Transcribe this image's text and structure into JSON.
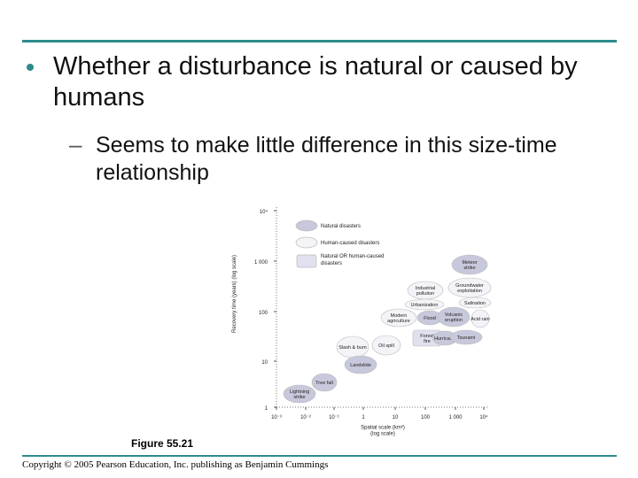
{
  "slide": {
    "bullet": "Whether a disturbance is natural or caused by humans",
    "sub_dash": "–",
    "sub_bullet": "Seems to make little difference in this size-time relationship",
    "figure_caption": "Figure 55.21",
    "copyright": "Copyright © 2005 Pearson Education, Inc. publishing as Benjamin Cummings"
  },
  "colors": {
    "accent": "#2e8b8b",
    "natural_fill": "#c8c8dc",
    "human_fill": "#f4f4f8",
    "mixed_fill": "#e0e0ee"
  },
  "diagram": {
    "y_axis_label": "Recovery time (years) (log scale)",
    "x_axis_label": "Spatial scale (km²) (log scale)",
    "y_ticks": [
      "10⁴",
      "1 000",
      "100",
      "10",
      "1"
    ],
    "x_ticks": [
      "10⁻³",
      "10⁻²",
      "10⁻¹",
      "1",
      "10",
      "100",
      "1 000",
      "10⁴"
    ],
    "legend": [
      {
        "label": "Natural disasters",
        "kind": "natural"
      },
      {
        "label": "Human-caused disasters",
        "kind": "human"
      },
      {
        "label": "Natural OR human-caused disasters",
        "kind": "mixed"
      }
    ],
    "events": [
      {
        "label": "Meteor strike",
        "kind": "natural"
      },
      {
        "label": "Industrial pollution",
        "kind": "human"
      },
      {
        "label": "Groundwater exploitation",
        "kind": "human"
      },
      {
        "label": "Urbanization",
        "kind": "human"
      },
      {
        "label": "Salination",
        "kind": "human"
      },
      {
        "label": "Modern agriculture",
        "kind": "human"
      },
      {
        "label": "Flood",
        "kind": "natural"
      },
      {
        "label": "Volcanic eruption",
        "kind": "natural"
      },
      {
        "label": "Acid rain",
        "kind": "human"
      },
      {
        "label": "Forest fire",
        "kind": "mixed"
      },
      {
        "label": "Hurricane",
        "kind": "natural"
      },
      {
        "label": "Tsunami",
        "kind": "natural"
      },
      {
        "label": "Oil spill",
        "kind": "human"
      },
      {
        "label": "Slash & burn",
        "kind": "human"
      },
      {
        "label": "Landslide",
        "kind": "natural"
      },
      {
        "label": "Tree fall",
        "kind": "natural"
      },
      {
        "label": "Lightning strike",
        "kind": "natural"
      }
    ]
  }
}
